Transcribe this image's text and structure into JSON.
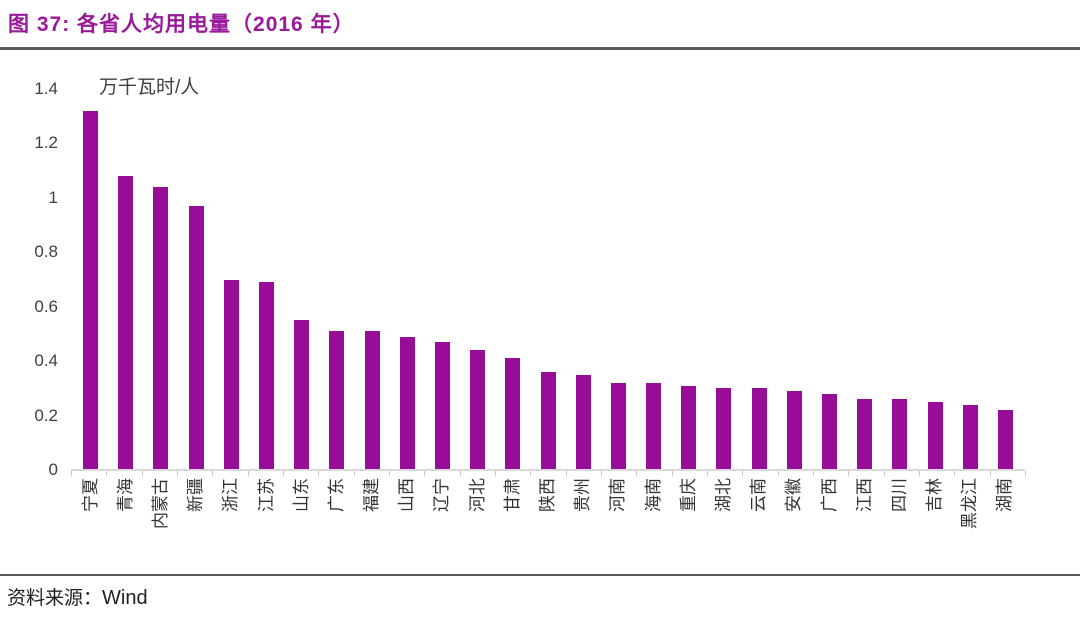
{
  "header": {
    "title": "图 37:  各省人均用电量（2016 年）"
  },
  "chart_data": {
    "type": "bar",
    "title": "各省人均用电量（2016 年）",
    "unit_label": "万千瓦时/人",
    "categories": [
      "宁夏",
      "青海",
      "内蒙古",
      "新疆",
      "浙江",
      "江苏",
      "山东",
      "广东",
      "福建",
      "山西",
      "辽宁",
      "河北",
      "甘肃",
      "陕西",
      "贵州",
      "河南",
      "海南",
      "重庆",
      "湖北",
      "云南",
      "安徽",
      "广西",
      "江西",
      "四川",
      "吉林",
      "黑龙江",
      "湖南"
    ],
    "values": [
      1.32,
      1.08,
      1.04,
      0.97,
      0.7,
      0.69,
      0.55,
      0.51,
      0.51,
      0.49,
      0.47,
      0.44,
      0.41,
      0.36,
      0.35,
      0.32,
      0.32,
      0.31,
      0.3,
      0.3,
      0.29,
      0.28,
      0.26,
      0.26,
      0.25,
      0.24,
      0.22
    ],
    "xlabel": "",
    "ylabel": "万千瓦时/人",
    "ylim": [
      0,
      1.4
    ],
    "yticks": [
      1.4,
      1.2,
      1,
      0.8,
      0.6,
      0.4,
      0.2,
      0
    ],
    "grid": false,
    "legend_position": "none",
    "bar_color": "#970d97",
    "x_label_rotation_deg": -90
  },
  "colors": {
    "title": "#9a189a",
    "rule": "#595959",
    "axis_line": "#d9d9d9",
    "tick": "#c9c9c9",
    "axis_text": "#404040"
  },
  "source": {
    "label": "资料来源：",
    "value": "Wind"
  }
}
